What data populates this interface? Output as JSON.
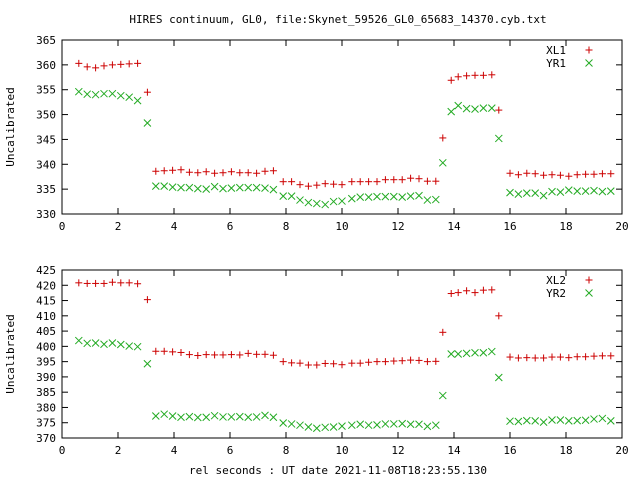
{
  "title": "HIRES continuum, GL0, file:Skynet_59526_GL0_65683_14370.cyb.txt",
  "xlabel": "rel seconds : UT date 2021-11-08T18:23:55.130",
  "colors": {
    "plus": "#cc0000",
    "cross": "#22aa22"
  },
  "chart_data": [
    {
      "type": "scatter",
      "ylabel": "Uncalibrated",
      "xlim": [
        0,
        20
      ],
      "ylim": [
        330,
        365
      ],
      "xticks": [
        0,
        2,
        4,
        6,
        8,
        10,
        12,
        14,
        16,
        18,
        20
      ],
      "yticks": [
        330,
        335,
        340,
        345,
        350,
        355,
        360,
        365
      ],
      "legend": "top-right",
      "grid": false,
      "series": [
        {
          "name": "XL1",
          "marker": "plus",
          "x": [
            0.6,
            0.9,
            1.2,
            1.5,
            1.8,
            2.1,
            2.4,
            2.7,
            3.05,
            3.35,
            3.65,
            3.95,
            4.25,
            4.55,
            4.85,
            5.15,
            5.45,
            5.75,
            6.05,
            6.35,
            6.65,
            6.95,
            7.25,
            7.55,
            7.9,
            8.2,
            8.5,
            8.8,
            9.1,
            9.4,
            9.7,
            10.0,
            10.35,
            10.65,
            10.95,
            11.25,
            11.55,
            11.85,
            12.15,
            12.45,
            12.75,
            13.05,
            13.35,
            13.6,
            13.9,
            14.15,
            14.45,
            14.75,
            15.05,
            15.35,
            15.6,
            16.0,
            16.3,
            16.6,
            16.9,
            17.2,
            17.5,
            17.8,
            18.1,
            18.4,
            18.7,
            19.0,
            19.3,
            19.6
          ],
          "y": [
            360.3,
            359.6,
            359.4,
            359.8,
            360.0,
            360.1,
            360.2,
            360.3,
            354.5,
            338.6,
            338.7,
            338.8,
            338.9,
            338.4,
            338.3,
            338.5,
            338.2,
            338.3,
            338.5,
            338.3,
            338.3,
            338.2,
            338.6,
            338.7,
            336.5,
            336.5,
            335.9,
            335.6,
            335.8,
            336.1,
            336.0,
            335.9,
            336.5,
            336.5,
            336.5,
            336.5,
            336.9,
            336.9,
            336.9,
            337.2,
            337.1,
            336.6,
            336.6,
            345.3,
            356.9,
            357.6,
            357.8,
            357.9,
            357.9,
            358.0,
            350.9,
            338.2,
            337.9,
            338.2,
            338.1,
            337.8,
            337.9,
            337.8,
            337.6,
            337.9,
            338.0,
            338.0,
            338.1,
            338.1
          ]
        },
        {
          "name": "YR1",
          "marker": "cross",
          "x": [
            0.6,
            0.9,
            1.2,
            1.5,
            1.8,
            2.1,
            2.4,
            2.7,
            3.05,
            3.35,
            3.65,
            3.95,
            4.25,
            4.55,
            4.85,
            5.15,
            5.45,
            5.75,
            6.05,
            6.35,
            6.65,
            6.95,
            7.25,
            7.55,
            7.9,
            8.2,
            8.5,
            8.8,
            9.1,
            9.4,
            9.7,
            10.0,
            10.35,
            10.65,
            10.95,
            11.25,
            11.55,
            11.85,
            12.15,
            12.45,
            12.75,
            13.05,
            13.35,
            13.6,
            13.9,
            14.15,
            14.45,
            14.75,
            15.05,
            15.35,
            15.6,
            16.0,
            16.3,
            16.6,
            16.9,
            17.2,
            17.5,
            17.8,
            18.1,
            18.4,
            18.7,
            19.0,
            19.3,
            19.6
          ],
          "y": [
            354.6,
            354.1,
            354.0,
            354.2,
            354.2,
            353.8,
            353.5,
            352.8,
            348.3,
            335.6,
            335.6,
            335.4,
            335.3,
            335.3,
            335.1,
            335.0,
            335.5,
            335.1,
            335.2,
            335.3,
            335.3,
            335.3,
            335.2,
            334.9,
            333.6,
            333.6,
            332.8,
            332.3,
            332.1,
            331.9,
            332.5,
            332.6,
            333.1,
            333.4,
            333.4,
            333.5,
            333.5,
            333.5,
            333.4,
            333.6,
            333.7,
            332.8,
            332.9,
            340.3,
            350.6,
            351.8,
            351.2,
            351.1,
            351.3,
            351.3,
            345.2,
            334.3,
            334.0,
            334.2,
            334.2,
            333.7,
            334.5,
            334.4,
            334.8,
            334.6,
            334.6,
            334.7,
            334.5,
            334.6
          ]
        }
      ]
    },
    {
      "type": "scatter",
      "ylabel": "Uncalibrated",
      "xlim": [
        0,
        20
      ],
      "ylim": [
        370,
        425
      ],
      "xticks": [
        0,
        2,
        4,
        6,
        8,
        10,
        12,
        14,
        16,
        18,
        20
      ],
      "yticks": [
        370,
        375,
        380,
        385,
        390,
        395,
        400,
        405,
        410,
        415,
        420,
        425
      ],
      "legend": "top-right",
      "grid": false,
      "series": [
        {
          "name": "XL2",
          "marker": "plus",
          "x": [
            0.6,
            0.9,
            1.2,
            1.5,
            1.8,
            2.1,
            2.4,
            2.7,
            3.05,
            3.35,
            3.65,
            3.95,
            4.25,
            4.55,
            4.85,
            5.15,
            5.45,
            5.75,
            6.05,
            6.35,
            6.65,
            6.95,
            7.25,
            7.55,
            7.9,
            8.2,
            8.5,
            8.8,
            9.1,
            9.4,
            9.7,
            10.0,
            10.35,
            10.65,
            10.95,
            11.25,
            11.55,
            11.85,
            12.15,
            12.45,
            12.75,
            13.05,
            13.35,
            13.6,
            13.9,
            14.15,
            14.45,
            14.75,
            15.05,
            15.35,
            15.6,
            16.0,
            16.3,
            16.6,
            16.9,
            17.2,
            17.5,
            17.8,
            18.1,
            18.4,
            18.7,
            19.0,
            19.3,
            19.6
          ],
          "y": [
            420.8,
            420.6,
            420.6,
            420.6,
            421.0,
            420.8,
            420.8,
            420.5,
            415.3,
            398.4,
            398.4,
            398.2,
            398.0,
            397.3,
            397.0,
            397.3,
            397.2,
            397.2,
            397.3,
            397.2,
            397.7,
            397.4,
            397.4,
            397.1,
            395.0,
            394.6,
            394.5,
            393.9,
            393.9,
            394.4,
            394.3,
            394.0,
            394.5,
            394.5,
            394.8,
            395.0,
            395.0,
            395.2,
            395.3,
            395.5,
            395.4,
            395.0,
            395.1,
            404.6,
            417.3,
            417.6,
            418.2,
            417.6,
            418.4,
            418.5,
            410.0,
            396.5,
            396.2,
            396.3,
            396.2,
            396.2,
            396.5,
            396.5,
            396.3,
            396.6,
            396.6,
            396.8,
            396.9,
            396.9
          ]
        },
        {
          "name": "YR2",
          "marker": "cross",
          "x": [
            0.6,
            0.9,
            1.2,
            1.5,
            1.8,
            2.1,
            2.4,
            2.7,
            3.05,
            3.35,
            3.65,
            3.95,
            4.25,
            4.55,
            4.85,
            5.15,
            5.45,
            5.75,
            6.05,
            6.35,
            6.65,
            6.95,
            7.25,
            7.55,
            7.9,
            8.2,
            8.5,
            8.8,
            9.1,
            9.4,
            9.7,
            10.0,
            10.35,
            10.65,
            10.95,
            11.25,
            11.55,
            11.85,
            12.15,
            12.45,
            12.75,
            13.05,
            13.35,
            13.6,
            13.9,
            14.15,
            14.45,
            14.75,
            15.05,
            15.35,
            15.6,
            16.0,
            16.3,
            16.6,
            16.9,
            17.2,
            17.5,
            17.8,
            18.1,
            18.4,
            18.7,
            19.0,
            19.3,
            19.6
          ],
          "y": [
            401.9,
            401.0,
            401.1,
            400.7,
            401.1,
            400.6,
            400.1,
            399.9,
            394.3,
            377.2,
            377.8,
            377.2,
            376.8,
            377.0,
            376.7,
            376.8,
            377.3,
            376.9,
            376.9,
            377.0,
            376.8,
            376.9,
            377.4,
            376.8,
            374.9,
            374.6,
            374.2,
            373.6,
            373.2,
            373.5,
            373.6,
            373.9,
            374.2,
            374.5,
            374.2,
            374.3,
            374.6,
            374.6,
            374.7,
            374.5,
            374.5,
            373.8,
            374.2,
            383.9,
            397.5,
            397.5,
            397.7,
            397.9,
            397.9,
            398.3,
            389.8,
            375.5,
            375.4,
            375.7,
            375.6,
            375.2,
            375.9,
            375.9,
            375.6,
            375.7,
            375.8,
            376.2,
            376.4,
            375.6
          ]
        }
      ]
    }
  ]
}
